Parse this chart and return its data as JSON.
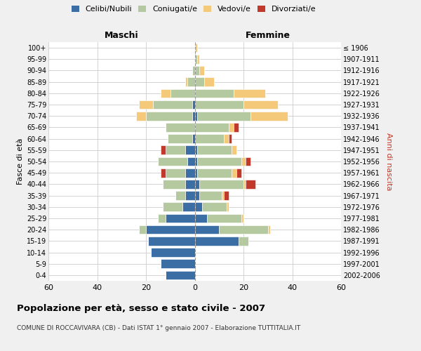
{
  "age_groups": [
    "0-4",
    "5-9",
    "10-14",
    "15-19",
    "20-24",
    "25-29",
    "30-34",
    "35-39",
    "40-44",
    "45-49",
    "50-54",
    "55-59",
    "60-64",
    "65-69",
    "70-74",
    "75-79",
    "80-84",
    "85-89",
    "90-94",
    "95-99",
    "100+"
  ],
  "birth_years": [
    "2002-2006",
    "1997-2001",
    "1992-1996",
    "1987-1991",
    "1982-1986",
    "1977-1981",
    "1972-1976",
    "1967-1971",
    "1962-1966",
    "1957-1961",
    "1952-1956",
    "1947-1951",
    "1942-1946",
    "1937-1941",
    "1932-1936",
    "1927-1931",
    "1922-1926",
    "1917-1921",
    "1912-1916",
    "1907-1911",
    "≤ 1906"
  ],
  "colors": {
    "celibi": "#3a6ea5",
    "coniugati": "#b5c9a0",
    "vedovi": "#f5c97a",
    "divorziati": "#c0392b"
  },
  "maschi": {
    "celibi": [
      12,
      14,
      18,
      19,
      20,
      12,
      5,
      4,
      4,
      4,
      3,
      4,
      1,
      0,
      1,
      1,
      0,
      0,
      0,
      0,
      0
    ],
    "coniugati": [
      0,
      0,
      0,
      0,
      3,
      3,
      8,
      4,
      9,
      8,
      12,
      8,
      10,
      12,
      19,
      16,
      10,
      3,
      1,
      0,
      0
    ],
    "vedovi": [
      0,
      0,
      0,
      0,
      0,
      0,
      0,
      0,
      0,
      0,
      0,
      0,
      0,
      0,
      4,
      6,
      4,
      1,
      0,
      0,
      0
    ],
    "divorziati": [
      0,
      0,
      0,
      0,
      0,
      0,
      0,
      0,
      0,
      2,
      0,
      2,
      0,
      0,
      0,
      0,
      0,
      0,
      0,
      0,
      0
    ]
  },
  "femmine": {
    "celibi": [
      0,
      0,
      0,
      18,
      10,
      5,
      3,
      2,
      2,
      1,
      1,
      1,
      0,
      0,
      1,
      0,
      0,
      0,
      0,
      0,
      0
    ],
    "coniugati": [
      0,
      0,
      0,
      4,
      20,
      14,
      10,
      9,
      18,
      14,
      18,
      14,
      12,
      14,
      22,
      20,
      16,
      4,
      2,
      1,
      0
    ],
    "vedovi": [
      0,
      0,
      0,
      0,
      1,
      1,
      1,
      1,
      1,
      2,
      2,
      2,
      2,
      2,
      15,
      14,
      13,
      4,
      2,
      1,
      1
    ],
    "divorziati": [
      0,
      0,
      0,
      0,
      0,
      0,
      0,
      2,
      4,
      2,
      2,
      0,
      1,
      2,
      0,
      0,
      0,
      0,
      0,
      0,
      0
    ]
  },
  "xlim": 60,
  "title": "Popolazione per età, sesso e stato civile - 2007",
  "subtitle": "COMUNE DI ROCCAVIVARA (CB) - Dati ISTAT 1° gennaio 2007 - Elaborazione TUTTITALIA.IT",
  "xlabel_left": "Maschi",
  "xlabel_right": "Femmine",
  "ylabel_left": "Fasce di età",
  "ylabel_right": "Anni di nascita",
  "legend_labels": [
    "Celibi/Nubili",
    "Coniugati/e",
    "Vedovi/e",
    "Divorziati/e"
  ],
  "bg_color": "#f0f0f0",
  "plot_bg": "#ffffff"
}
